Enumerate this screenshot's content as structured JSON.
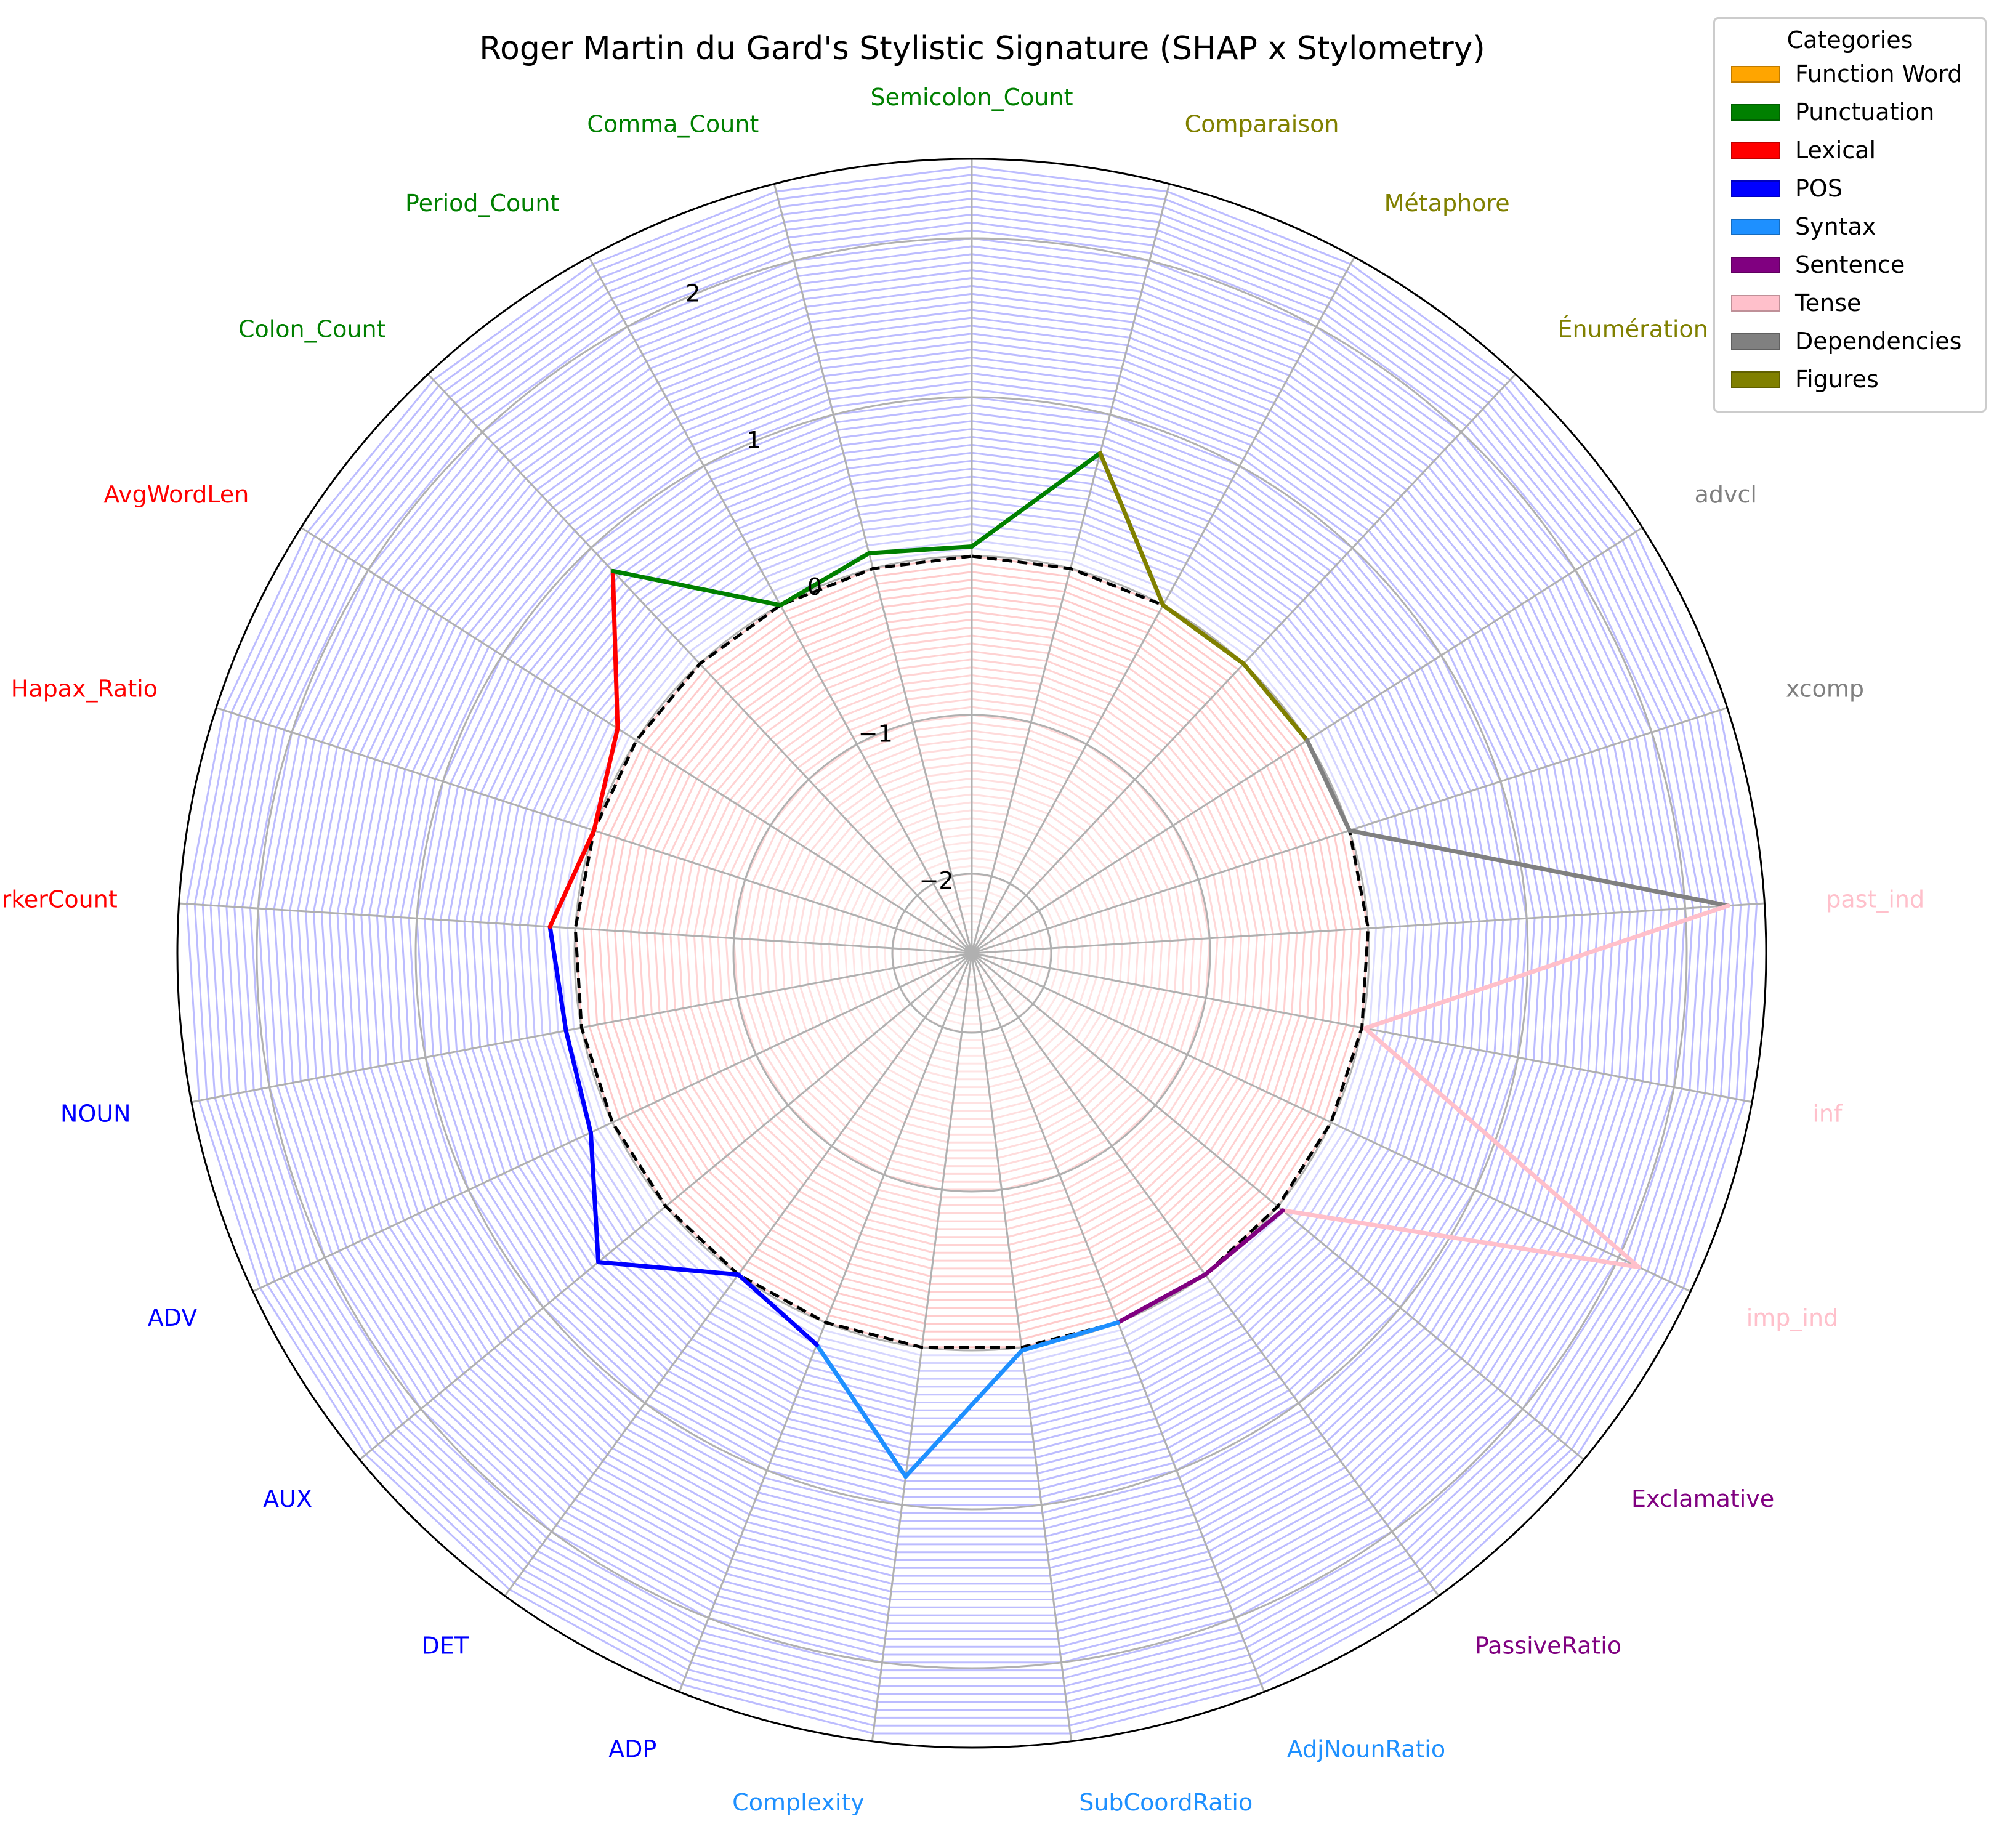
{
  "chart_data": {
    "type": "radar",
    "title": "Roger Martin du Gard's Stylistic Signature (SHAP x Stylometry)",
    "r_range": [
      -2.5,
      2.5
    ],
    "r_ticks": [
      -2,
      -1,
      0,
      1,
      2
    ],
    "r_tick_labels": [
      "−2",
      "−1",
      "0",
      "1",
      "2"
    ],
    "baseline_value": 0,
    "legend_title": "Categories",
    "categories": [
      {
        "name": "Function Word",
        "color": "#ffa500"
      },
      {
        "name": "Punctuation",
        "color": "#008000"
      },
      {
        "name": "Lexical",
        "color": "#ff0000"
      },
      {
        "name": "POS",
        "color": "#0000ff"
      },
      {
        "name": "Syntax",
        "color": "#1e90ff"
      },
      {
        "name": "Sentence",
        "color": "#800080"
      },
      {
        "name": "Tense",
        "color": "#ffc0cb"
      },
      {
        "name": "Dependencies",
        "color": "#808080"
      },
      {
        "name": "Figures",
        "color": "#808000"
      }
    ],
    "features": [
      {
        "label": "Semicolon_Count",
        "category": "Punctuation",
        "value": 0.06
      },
      {
        "label": "Comparaison",
        "category": "Figures",
        "value": 0.75
      },
      {
        "label": "Métaphore",
        "category": "Figures",
        "value": 0.0
      },
      {
        "label": "Énumération",
        "category": "Figures",
        "value": 0.0
      },
      {
        "label": "advcl",
        "category": "Dependencies",
        "value": 0.0
      },
      {
        "label": "xcomp",
        "category": "Dependencies",
        "value": 0.0
      },
      {
        "label": "past_ind",
        "category": "Tense",
        "value": 2.27
      },
      {
        "label": "inf",
        "category": "Tense",
        "value": 0.02
      },
      {
        "label": "imp_ind",
        "category": "Tense",
        "value": 2.14
      },
      {
        "label": "Exclamative",
        "category": "Sentence",
        "value": 0.04
      },
      {
        "label": "PassiveRatio",
        "category": "Sentence",
        "value": 0.0
      },
      {
        "label": "AdjNounRatio",
        "category": "Syntax",
        "value": 0.0
      },
      {
        "label": "SubCoordRatio",
        "category": "Syntax",
        "value": 0.02
      },
      {
        "label": "Complexity",
        "category": "Syntax",
        "value": 0.82
      },
      {
        "label": "ADP",
        "category": "POS",
        "value": 0.15
      },
      {
        "label": "DET",
        "category": "POS",
        "value": 0.0
      },
      {
        "label": "AUX",
        "category": "POS",
        "value": 0.55
      },
      {
        "label": "ADV",
        "category": "POS",
        "value": 0.15
      },
      {
        "label": "NOUN",
        "category": "POS",
        "value": 0.1
      },
      {
        "label": "MarkerCount",
        "category": "Lexical",
        "value": 0.16
      },
      {
        "label": "Hapax_Ratio",
        "category": "Lexical",
        "value": 0.0
      },
      {
        "label": "AvgWordLen",
        "category": "Lexical",
        "value": 0.14
      },
      {
        "label": "Colon_Count",
        "category": "Punctuation",
        "value": 0.8
      },
      {
        "label": "Period_Count",
        "category": "Punctuation",
        "value": 0.0
      },
      {
        "label": "Comma_Count",
        "category": "Punctuation",
        "value": 0.1
      }
    ]
  }
}
